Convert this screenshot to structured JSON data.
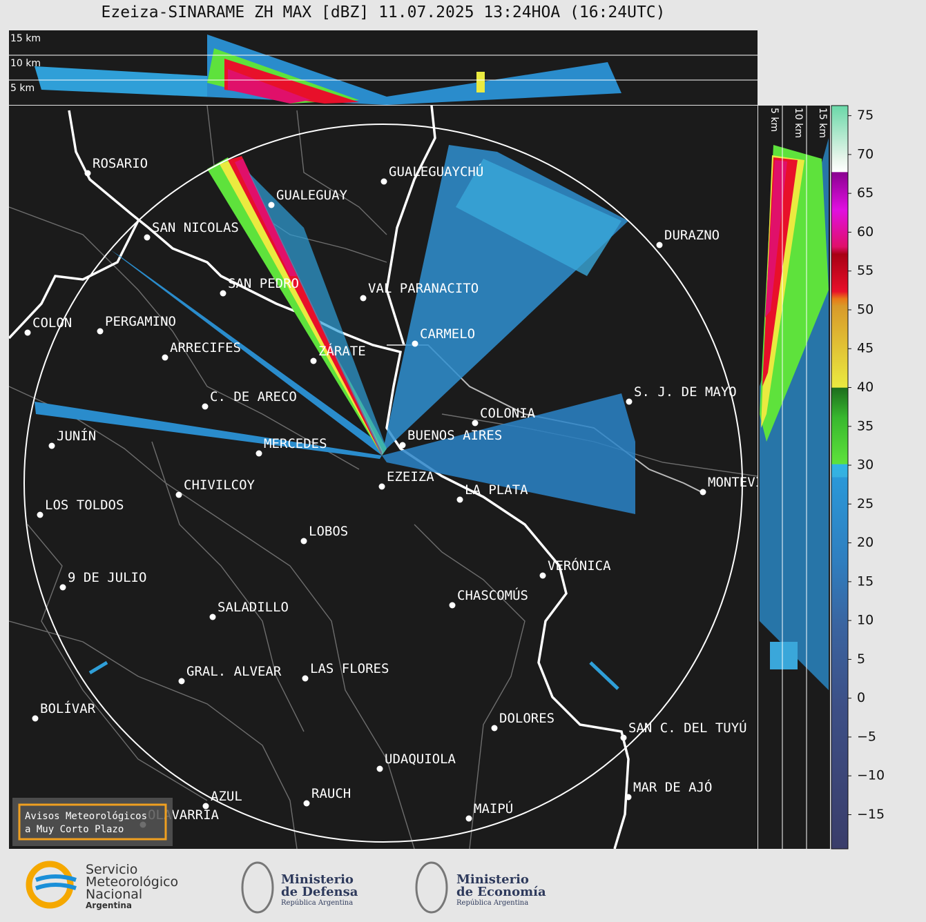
{
  "title": "Ezeiza-SINARAME ZH MAX [dBZ] 11.07.2025 13:24HOA (16:24UTC)",
  "top_section": {
    "height_labels": [
      "15 km",
      "10 km",
      "5 km"
    ]
  },
  "side_section": {
    "height_labels": [
      "5 km",
      "10 km",
      "15 km"
    ]
  },
  "map": {
    "cities": [
      "ROSARIO",
      "GUALEGUAY",
      "GUALEGUAYCHÚ",
      "SAN NICOLAS",
      "DURAZNO",
      "SAN PEDRO",
      "VAL PARANACITO",
      "COLON",
      "PERGAMINO",
      "CARMELO",
      "ARRECIFES",
      "ZÁRATE",
      "S. J. DE MAYO",
      "C. DE ARECO",
      "COLONIA",
      "JUNÍN",
      "BUENOS AIRES",
      "MERCEDES",
      "EZEIZA",
      "MONTEVIDEO",
      "CHIVILCOY",
      "LA PLATA",
      "LOS TOLDOS",
      "LOBOS",
      "VERÓNICA",
      "9 DE JULIO",
      "CHASCOMÚS",
      "SALADILLO",
      "GRAL. ALVEAR",
      "LAS FLORES",
      "BOLÍVAR",
      "DOLORES",
      "SAN C. DEL TUYÚ",
      "UDAQUIOLA",
      "MAR DE AJÓ",
      "AZUL",
      "RAUCH",
      "OLAVARRÍA",
      "MAIPÚ"
    ]
  },
  "colorbar": {
    "lim": [
      -19.4,
      76.3
    ],
    "ticks": [
      75,
      70,
      65,
      60,
      55,
      50,
      45,
      40,
      35,
      30,
      25,
      20,
      15,
      10,
      5,
      0,
      {
        "value": -5,
        "label": "−5"
      },
      {
        "value": -10,
        "label": "−10"
      },
      {
        "value": -15,
        "label": "−15"
      }
    ]
  },
  "notice": {
    "line1": "Avisos Meteorológicos",
    "line2": "a Muy Corto Plazo"
  },
  "footer": {
    "smn": [
      "Servicio",
      "Meteorológico",
      "Nacional",
      "Argentina"
    ],
    "defensa": [
      "Ministerio",
      "de Defensa",
      "República Argentina"
    ],
    "economia": [
      "Ministerio",
      "de Economía",
      "República Argentina"
    ]
  }
}
